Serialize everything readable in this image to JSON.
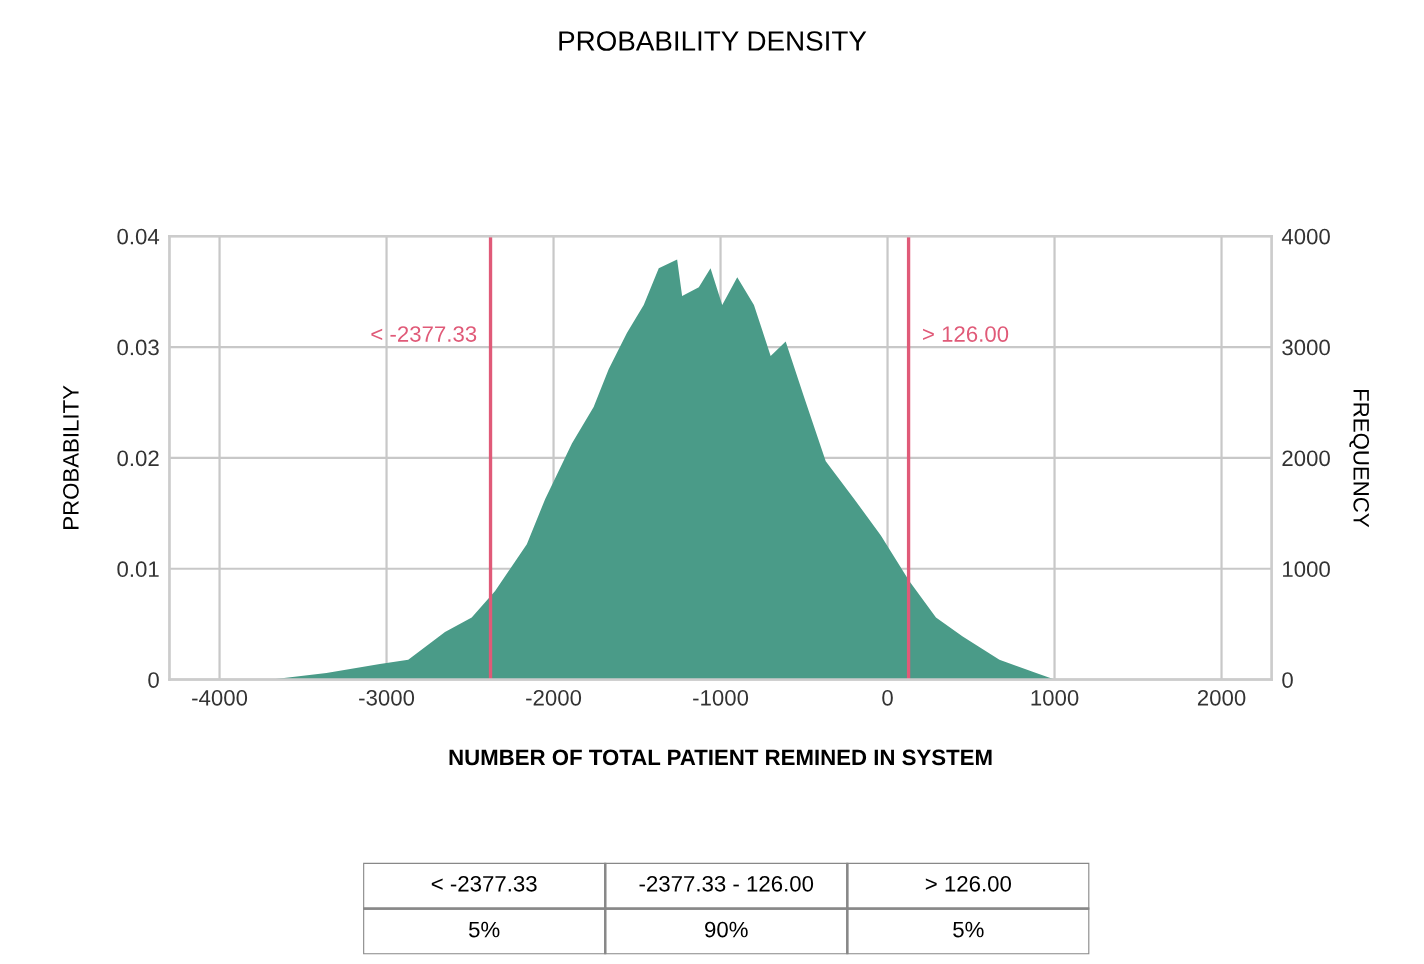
{
  "chart_data": {
    "type": "area",
    "title": "PROBABILITY DENSITY",
    "xlabel": "NUMBER OF TOTAL PATIENT REMINED IN SYSTEM",
    "ylabel": "PROBABILITY",
    "y2label": "FREQUENCY",
    "x": [
      -3690,
      -3360,
      -3040,
      -2870,
      -2650,
      -2490,
      -2350,
      -2160,
      -2050,
      -1890,
      -1760,
      -1670,
      -1560,
      -1460,
      -1370,
      -1260,
      -1230,
      -1130,
      -1060,
      -990,
      -900,
      -800,
      -700,
      -610,
      -500,
      -370,
      -200,
      -40,
      130,
      290,
      450,
      670,
      890,
      1000
    ],
    "series": [
      {
        "color": "#4a9b88",
        "values": [
          0,
          0.0006,
          0.0014,
          0.0018,
          0.0043,
          0.0056,
          0.008,
          0.0122,
          0.0163,
          0.0213,
          0.0246,
          0.028,
          0.0313,
          0.0338,
          0.0371,
          0.0379,
          0.0346,
          0.0354,
          0.0371,
          0.0338,
          0.0363,
          0.0338,
          0.0292,
          0.0305,
          0.0255,
          0.0197,
          0.0163,
          0.013,
          0.0089,
          0.0056,
          0.0039,
          0.0018,
          0.0006,
          0
        ]
      }
    ],
    "xlim": [
      -4300,
      2300
    ],
    "xticks": [
      -4000,
      -3000,
      -2000,
      -1000,
      0,
      1000,
      2000
    ],
    "ylim": [
      0,
      0.04
    ],
    "yticks": [
      0,
      0.01,
      0.02,
      0.03,
      0.04
    ],
    "y2lim": [
      0,
      4000
    ],
    "y2ticks": [
      0,
      1000,
      2000,
      3000,
      4000
    ],
    "grid": true,
    "ref_lines": [
      {
        "axis": "x",
        "value": -2377.33,
        "label": "< -2377.33",
        "color": "#e05a78"
      },
      {
        "axis": "x",
        "value": 126,
        "label": "> 126.00",
        "color": "#e05a78"
      }
    ],
    "annotations": [
      "< -2377.33",
      "-2377.33 - 126.00",
      "> 126.00",
      "5%",
      "90%",
      "5%"
    ]
  }
}
